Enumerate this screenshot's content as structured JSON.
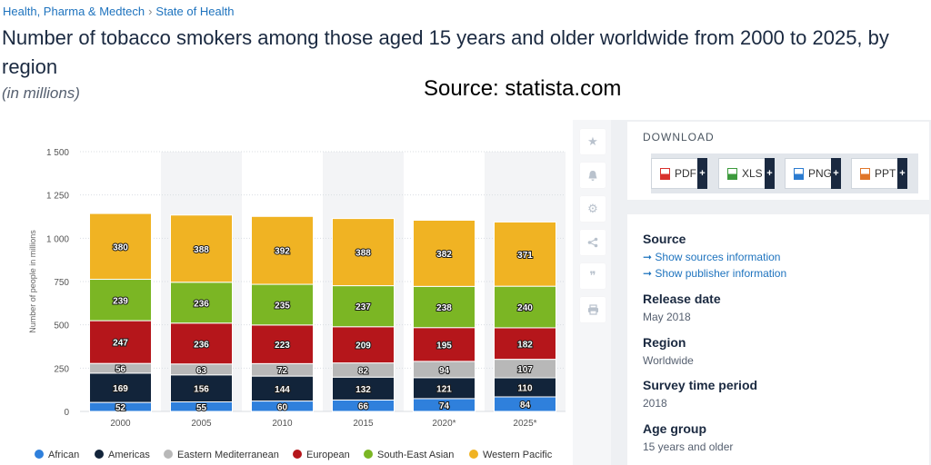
{
  "breadcrumb": {
    "item1": "Health, Pharma & Medtech",
    "separator": "›",
    "item2": "State of Health"
  },
  "title": "Number of tobacco smokers among those aged 15 years and older worldwide from 2000 to 2025, by region",
  "subtitle": "(in millions)",
  "source_overlay": "Source: statista.com",
  "side_icons": [
    "star-icon",
    "bell-icon",
    "gear-icon",
    "share-icon",
    "quote-icon",
    "print-icon"
  ],
  "download": {
    "heading": "DOWNLOAD",
    "buttons": [
      {
        "label": "PDF",
        "color": "#d9302c"
      },
      {
        "label": "XLS",
        "color": "#3c9a3c"
      },
      {
        "label": "PNG",
        "color": "#2b7bd0"
      },
      {
        "label": "PPT",
        "color": "#e0762a"
      }
    ],
    "plus": "+"
  },
  "info": {
    "source_label": "Source",
    "source_link1": "➞ Show sources information",
    "source_link2": "➞ Show publisher information",
    "release_label": "Release date",
    "release_value": "May 2018",
    "region_label": "Region",
    "region_value": "Worldwide",
    "survey_label": "Survey time period",
    "survey_value": "2018",
    "age_label": "Age group",
    "age_value": "15 years and older"
  },
  "chart_data": {
    "type": "bar",
    "stacked": true,
    "categories": [
      "2000",
      "2005",
      "2010",
      "2015",
      "2020*",
      "2025*"
    ],
    "ylabel": "Number of people in millions",
    "ylim": [
      0,
      1500
    ],
    "yticks": [
      0,
      250,
      500,
      750,
      1000,
      1250,
      1500
    ],
    "ytick_labels": [
      "0",
      "250",
      "500",
      "750",
      "1 000",
      "1 250",
      "1 500"
    ],
    "grid": true,
    "legend_position": "bottom",
    "series": [
      {
        "name": "African",
        "color": "#2f80dc",
        "values": [
          52,
          55,
          60,
          66,
          74,
          84
        ]
      },
      {
        "name": "Americas",
        "color": "#12243a",
        "values": [
          169,
          156,
          144,
          132,
          121,
          110
        ]
      },
      {
        "name": "Eastern Mediterranean",
        "color": "#b8b8b8",
        "values": [
          56,
          63,
          72,
          82,
          94,
          107
        ]
      },
      {
        "name": "European",
        "color": "#b5161b",
        "values": [
          247,
          236,
          223,
          209,
          195,
          182
        ]
      },
      {
        "name": "South-East Asian",
        "color": "#7bb624",
        "values": [
          239,
          236,
          235,
          237,
          238,
          240
        ]
      },
      {
        "name": "Western Pacific",
        "color": "#f0b323",
        "values": [
          380,
          388,
          392,
          388,
          382,
          371
        ]
      }
    ]
  }
}
